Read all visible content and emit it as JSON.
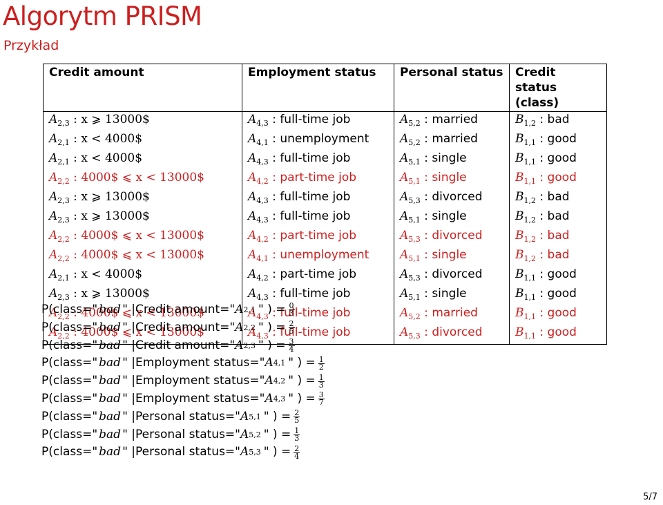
{
  "title": "Algorytm PRISM",
  "subtitle": "Przykład",
  "table": {
    "headers": [
      "Credit amount",
      "Employment status",
      "Personal status",
      "Credit status (class)"
    ],
    "rows": [
      {
        "red": false,
        "credit": {
          "a": "A",
          "sub": "2,3",
          "rest": " : x ⩾ 13000$"
        },
        "emp": {
          "a": "A",
          "sub": "4,3",
          "rest": " : full-time job"
        },
        "pers": {
          "a": "A",
          "sub": "5,2",
          "rest": " : married"
        },
        "cls": {
          "a": "B",
          "sub": "1,2",
          "rest": " : bad"
        }
      },
      {
        "red": false,
        "credit": {
          "a": "A",
          "sub": "2,1",
          "rest": " : x < 4000$"
        },
        "emp": {
          "a": "A",
          "sub": "4,1",
          "rest": " : unemployment"
        },
        "pers": {
          "a": "A",
          "sub": "5,2",
          "rest": " : married"
        },
        "cls": {
          "a": "B",
          "sub": "1,1",
          "rest": " : good"
        }
      },
      {
        "red": false,
        "credit": {
          "a": "A",
          "sub": "2,1",
          "rest": " : x < 4000$"
        },
        "emp": {
          "a": "A",
          "sub": "4,3",
          "rest": " : full-time job"
        },
        "pers": {
          "a": "A",
          "sub": "5,1",
          "rest": " : single"
        },
        "cls": {
          "a": "B",
          "sub": "1,1",
          "rest": " : good"
        }
      },
      {
        "red": true,
        "credit": {
          "a": "A",
          "sub": "2,2",
          "rest": " : 4000$ ⩽ x < 13000$"
        },
        "emp": {
          "a": "A",
          "sub": "4,2",
          "rest": " : part-time job"
        },
        "pers": {
          "a": "A",
          "sub": "5,1",
          "rest": " : single"
        },
        "cls": {
          "a": "B",
          "sub": "1,1",
          "rest": " : good"
        }
      },
      {
        "red": false,
        "credit": {
          "a": "A",
          "sub": "2,3",
          "rest": " : x ⩾ 13000$"
        },
        "emp": {
          "a": "A",
          "sub": "4,3",
          "rest": " : full-time job"
        },
        "pers": {
          "a": "A",
          "sub": "5,3",
          "rest": " : divorced"
        },
        "cls": {
          "a": "B",
          "sub": "1,2",
          "rest": " : bad"
        }
      },
      {
        "red": false,
        "credit": {
          "a": "A",
          "sub": "2,3",
          "rest": " : x ⩾ 13000$"
        },
        "emp": {
          "a": "A",
          "sub": "4,3",
          "rest": " : full-time job"
        },
        "pers": {
          "a": "A",
          "sub": "5,1",
          "rest": " : single"
        },
        "cls": {
          "a": "B",
          "sub": "1,2",
          "rest": " : bad"
        }
      },
      {
        "red": true,
        "credit": {
          "a": "A",
          "sub": "2,2",
          "rest": " : 4000$ ⩽ x < 13000$"
        },
        "emp": {
          "a": "A",
          "sub": "4,2",
          "rest": " : part-time job"
        },
        "pers": {
          "a": "A",
          "sub": "5,3",
          "rest": " : divorced"
        },
        "cls": {
          "a": "B",
          "sub": "1,2",
          "rest": " : bad"
        }
      },
      {
        "red": true,
        "credit": {
          "a": "A",
          "sub": "2,2",
          "rest": " : 4000$ ⩽ x < 13000$"
        },
        "emp": {
          "a": "A",
          "sub": "4,1",
          "rest": " : unemployment"
        },
        "pers": {
          "a": "A",
          "sub": "5,1",
          "rest": " : single"
        },
        "cls": {
          "a": "B",
          "sub": "1,2",
          "rest": " : bad"
        }
      },
      {
        "red": false,
        "credit": {
          "a": "A",
          "sub": "2,1",
          "rest": " : x < 4000$"
        },
        "emp": {
          "a": "A",
          "sub": "4,2",
          "rest": " : part-time job"
        },
        "pers": {
          "a": "A",
          "sub": "5,3",
          "rest": " : divorced"
        },
        "cls": {
          "a": "B",
          "sub": "1,1",
          "rest": " : good"
        }
      },
      {
        "red": false,
        "credit": {
          "a": "A",
          "sub": "2,3",
          "rest": " : x ⩾ 13000$"
        },
        "emp": {
          "a": "A",
          "sub": "4,3",
          "rest": " : full-time job"
        },
        "pers": {
          "a": "A",
          "sub": "5,1",
          "rest": " : single"
        },
        "cls": {
          "a": "B",
          "sub": "1,1",
          "rest": " : good"
        }
      },
      {
        "red": true,
        "credit": {
          "a": "A",
          "sub": "2,2",
          "rest": " : 4000$ ⩽ x < 13000$"
        },
        "emp": {
          "a": "A",
          "sub": "4,3",
          "rest": " : full-time job"
        },
        "pers": {
          "a": "A",
          "sub": "5,2",
          "rest": " : married"
        },
        "cls": {
          "a": "B",
          "sub": "1,1",
          "rest": " : good"
        }
      },
      {
        "red": true,
        "credit": {
          "a": "A",
          "sub": "2,2",
          "rest": " : 4000$ ⩽ x < 13000$"
        },
        "emp": {
          "a": "A",
          "sub": "4,3",
          "rest": " : full-time job"
        },
        "pers": {
          "a": "A",
          "sub": "5,3",
          "rest": " : divorced"
        },
        "cls": {
          "a": "B",
          "sub": "1,1",
          "rest": " : good"
        }
      }
    ]
  },
  "probabilities": [
    {
      "attr": "Credit amount=\"",
      "a": "A",
      "sub": "2,1",
      "num": "0",
      "den": "3"
    },
    {
      "attr": "Credit amount=\"",
      "a": "A",
      "sub": "2,2",
      "num": "2",
      "den": "5"
    },
    {
      "attr": "Credit amount=\"",
      "a": "A",
      "sub": "2,3",
      "num": "3",
      "den": "4"
    },
    {
      "attr": "Employment status=\"",
      "a": "A",
      "sub": "4,1",
      "num": "1",
      "den": "2"
    },
    {
      "attr": "Employment status=\"",
      "a": "A",
      "sub": "4,2",
      "num": "1",
      "den": "3"
    },
    {
      "attr": "Employment status=\"",
      "a": "A",
      "sub": "4,3",
      "num": "3",
      "den": "7"
    },
    {
      "attr": "Personal status=\"",
      "a": "A",
      "sub": "5,1",
      "num": "2",
      "den": "5"
    },
    {
      "attr": "Personal status=\"",
      "a": "A",
      "sub": "5,2",
      "num": "1",
      "den": "3"
    },
    {
      "attr": "Personal status=\"",
      "a": "A",
      "sub": "5,3",
      "num": "2",
      "den": "4"
    }
  ],
  "prob_prefix": "P(class=\"",
  "prob_class": "bad",
  "prob_mid": "\" |",
  "prob_close": "\" ) =",
  "page": "5/7",
  "colors": {
    "accent": "#cc1f1f",
    "text": "#000000"
  }
}
